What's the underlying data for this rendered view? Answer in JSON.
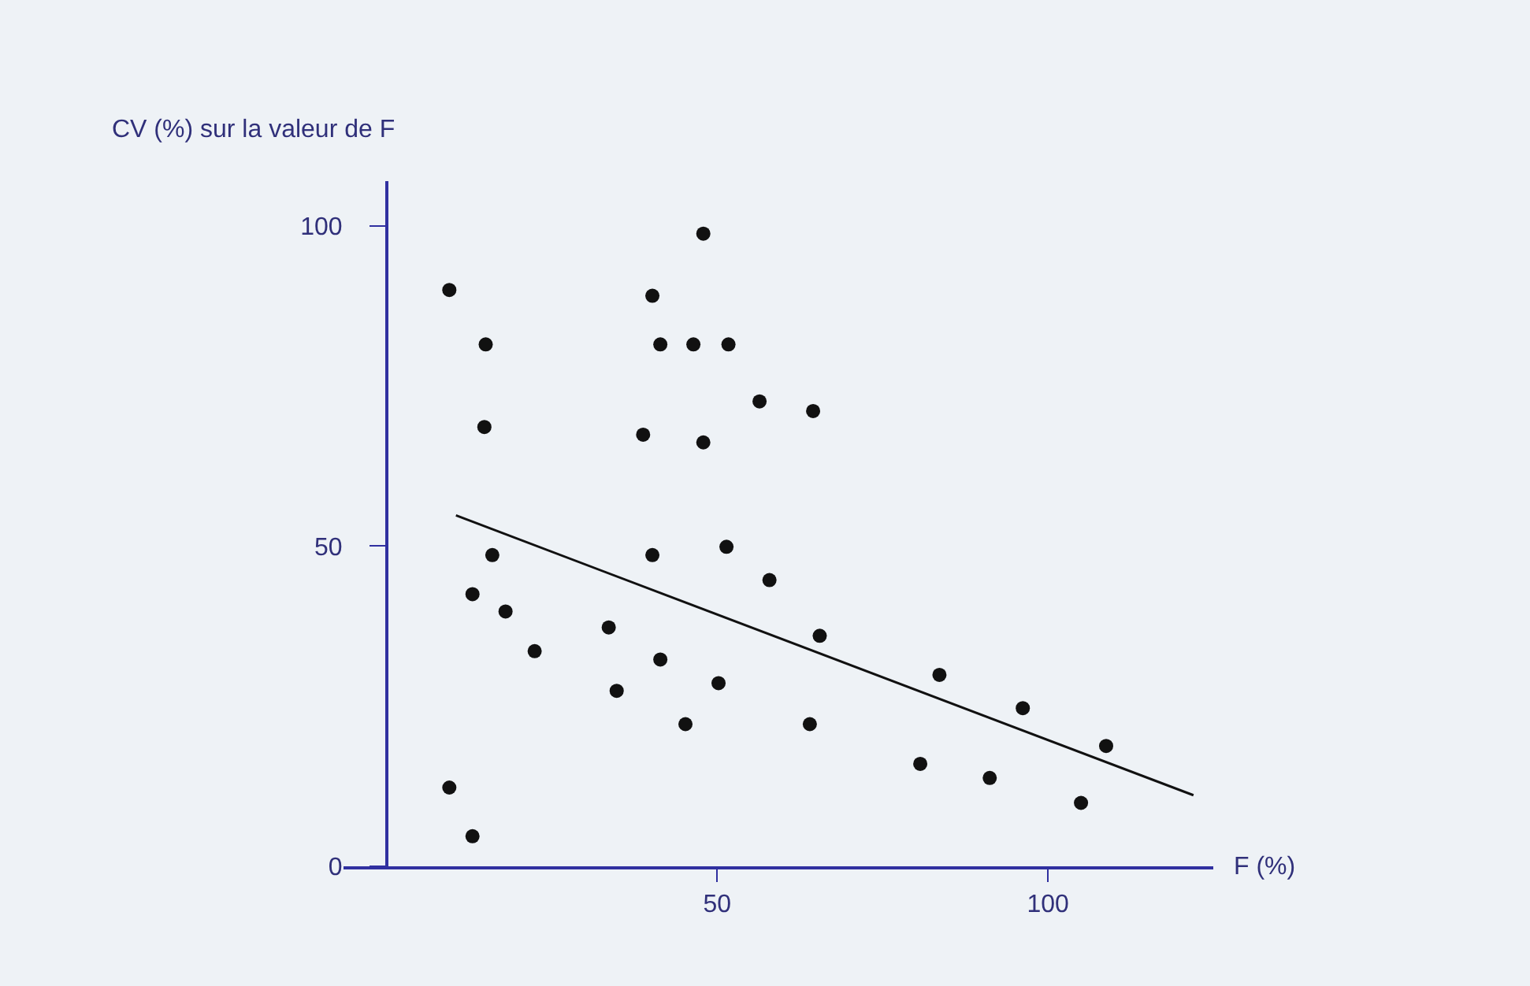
{
  "chart_data": {
    "type": "scatter",
    "xlabel": "F (%)",
    "ylabel": "CV (%) sur la valeur de F",
    "xlim": [
      -6.5,
      125
    ],
    "ylim": [
      0,
      107
    ],
    "xticks": [
      50,
      100
    ],
    "yticks": [
      0,
      50,
      100
    ],
    "grid": false,
    "series": [
      {
        "marker": "circle",
        "color": "#111111",
        "x": [
          9.5,
          15,
          14.8,
          16,
          13,
          18,
          22.4,
          9.5,
          13,
          33.6,
          34.8,
          38.8,
          40.2,
          41.4,
          46.4,
          47.9,
          47.9,
          51.7,
          40.2,
          41.4,
          45.2,
          51.4,
          50.2,
          56.4,
          57.9,
          64.5,
          65.5,
          64,
          80.7,
          83.6,
          91.2,
          96.2,
          105,
          108.8
        ],
        "values": [
          90,
          81.5,
          68.6,
          48.6,
          42.5,
          39.8,
          33.6,
          12.3,
          4.7,
          37.3,
          27.4,
          67.4,
          89.1,
          81.5,
          81.5,
          98.8,
          66.2,
          81.5,
          48.6,
          32.3,
          22.2,
          49.9,
          28.6,
          72.6,
          44.7,
          71.1,
          36,
          22.2,
          16,
          29.9,
          13.8,
          24.7,
          9.9,
          18.8
        ]
      },
      {
        "type": "line",
        "marker": "none",
        "color": "#111111",
        "x": [
          10.5,
          122
        ],
        "values": [
          54.8,
          11.1
        ]
      }
    ]
  }
}
